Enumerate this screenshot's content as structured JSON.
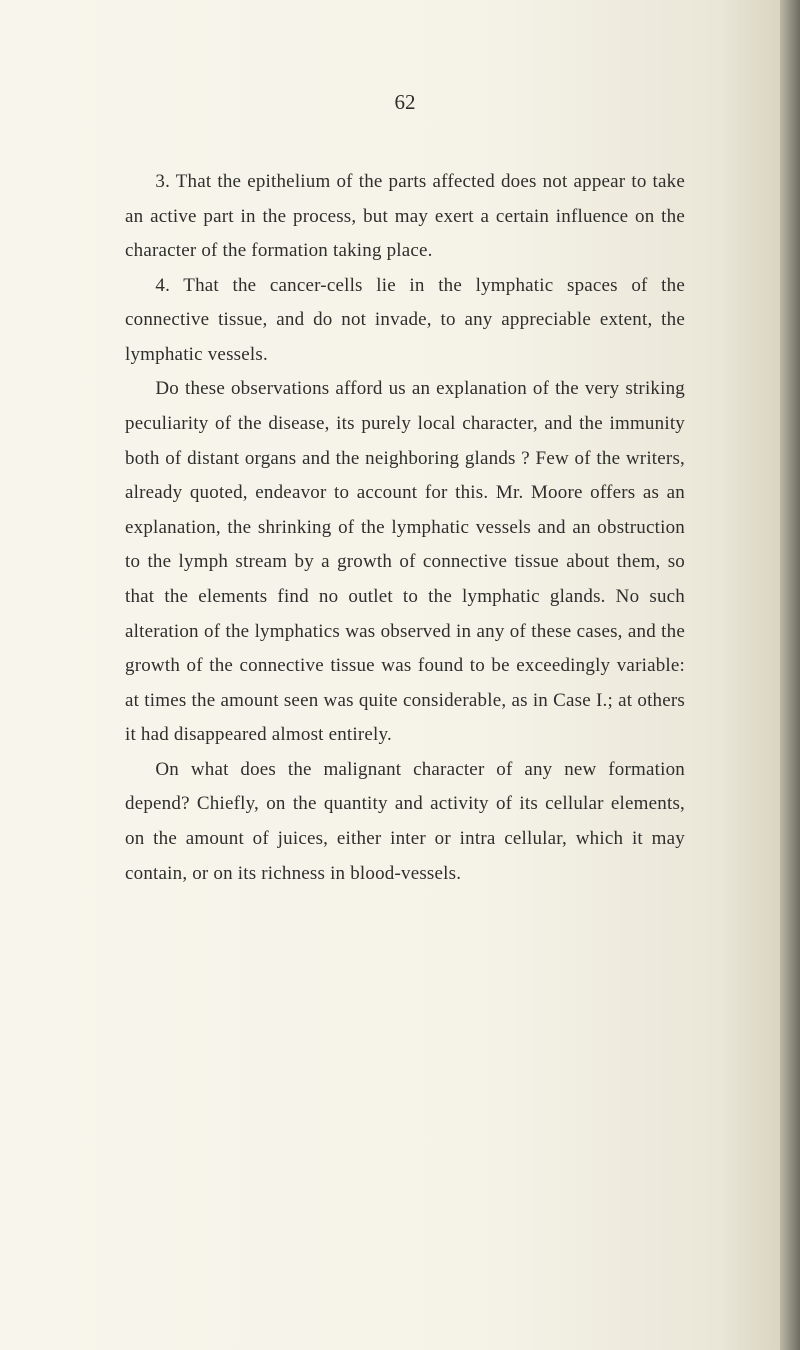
{
  "page_number": "62",
  "paragraphs": [
    "3. That the epithelium of the parts affected does not appear to take an active part in the process, but may exert a certain influence on the character of the formation taking place.",
    "4. That the cancer-cells lie in the lymphatic spaces of the connective tissue, and do not invade, to any appreciable extent, the lymphatic vessels.",
    "Do these observations afford us an explanation of the very striking peculiarity of the disease, its purely local character, and the immunity both of distant organs and the neighboring glands ? Few of the writers, already quoted, endeavor to account for this. Mr. Moore offers as an explanation, the shrinking of the lymphatic vessels and an obstruction to the lymph stream by a growth of connective tissue about them, so that the elements find no outlet to the lymphatic glands. No such alteration of the lymphatics was observed in any of these cases, and the growth of the connective tissue was found to be exceedingly variable: at times the amount seen was quite considerable, as in Case I.; at others it had disappeared almost entirely.",
    "On what does the malignant character of any new formation depend? Chiefly, on the quantity and activity of its cellular elements, on the amount of juices, either inter or intra cellular, which it may contain, or on its richness in blood-vessels."
  ],
  "colors": {
    "page_bg": "#f5f3e8",
    "text": "#2e2e2c"
  },
  "typography": {
    "body_fontsize": 19,
    "line_height": 1.82,
    "font_family": "Georgia, 'Times New Roman', serif"
  }
}
